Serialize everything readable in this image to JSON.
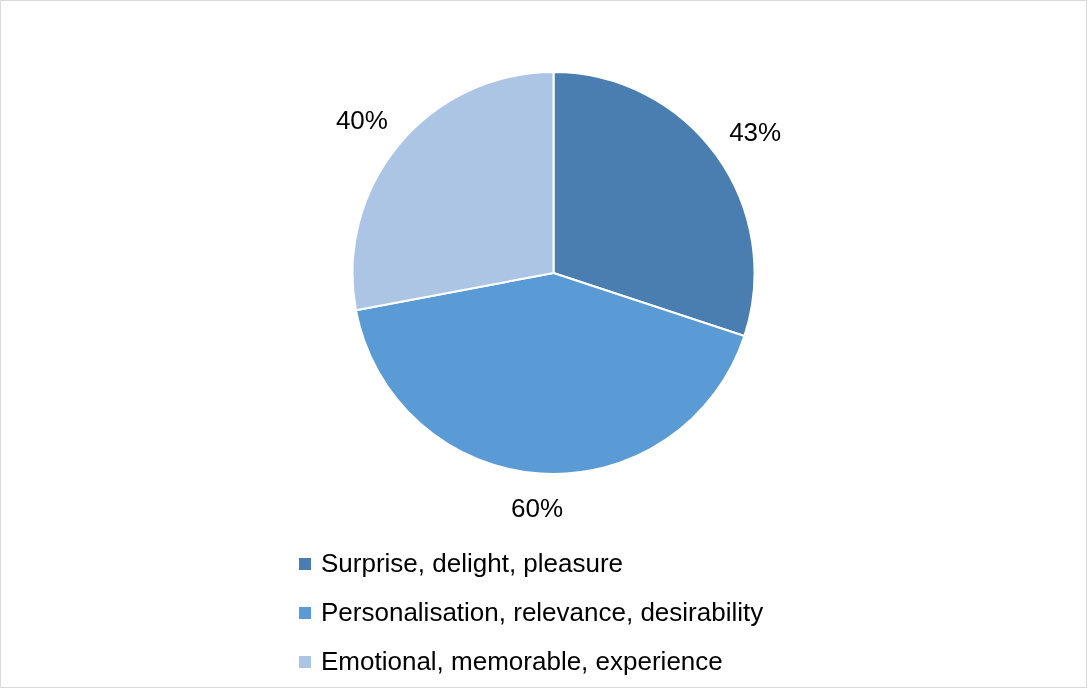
{
  "chart_data": {
    "type": "pie",
    "categories": [
      "Surprise, delight, pleasure",
      "Personalisation, relevance, desirability",
      "Emotional, memorable, experience"
    ],
    "values": [
      43,
      60,
      40
    ],
    "colors": [
      "#4a7eb0",
      "#5b9bd5",
      "#adc5e4"
    ],
    "value_labels": [
      "43%",
      "60%",
      "40%"
    ],
    "legend": "bottom"
  }
}
